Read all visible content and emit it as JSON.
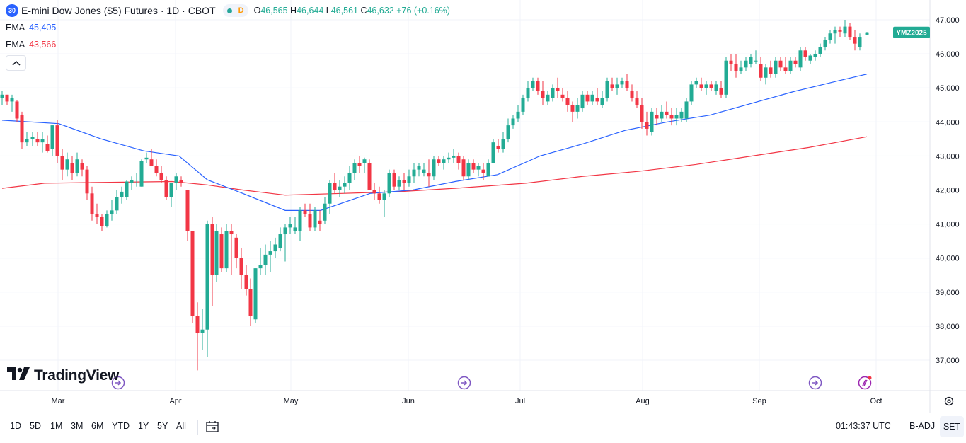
{
  "header": {
    "symbol_badge": "30",
    "title": "E-mini Dow Jones ($5) Futures · 1D · CBOT",
    "status_letter": "D",
    "ohlc": [
      {
        "label": "O",
        "value": "46,565"
      },
      {
        "label": "H",
        "value": "46,644"
      },
      {
        "label": "L",
        "value": "46,561"
      },
      {
        "label": "C",
        "value": "46,632"
      }
    ],
    "change": "+76 (+0.16%)"
  },
  "indicators": [
    {
      "label": "EMA",
      "value": "45,405",
      "color": "#2962ff"
    },
    {
      "label": "EMA",
      "value": "43,566",
      "color": "#f23645"
    }
  ],
  "collapse_icon": "chevron-up-icon",
  "logo_text": "TradingView",
  "price_badge": {
    "label": "YMZ2025",
    "color": "#22ab94"
  },
  "toolbar": {
    "ranges": [
      "1D",
      "5D",
      "1M",
      "3M",
      "6M",
      "YTD",
      "1Y",
      "5Y",
      "All"
    ],
    "calendar_icon": "calendar-icon",
    "clock": "01:43:37 UTC",
    "badj": "B-ADJ",
    "set": "SET"
  },
  "chart_data": {
    "type": "candlestick",
    "x_ticks": [
      "Mar",
      "Apr",
      "May",
      "Jun",
      "Jul",
      "Aug",
      "Sep",
      "Oct"
    ],
    "y_ticks": [
      "37,000",
      "38,000",
      "39,000",
      "40,000",
      "41,000",
      "42,000",
      "43,000",
      "44,000",
      "45,000",
      "46,000",
      "47,000"
    ],
    "ylim": [
      36600,
      47300
    ],
    "grid": true,
    "up_color": "#22ab94",
    "down_color": "#f23645",
    "event_markers": [
      {
        "date": "2025-03-07",
        "icon": "event-arrow-icon"
      },
      {
        "date": "2025-06-10",
        "icon": "event-arrow-icon"
      },
      {
        "date": "2025-09-15",
        "icon": "event-arrow-icon"
      },
      {
        "date": "2025-09-29",
        "icon": "event-dividend-icon"
      }
    ],
    "ema_long": {
      "color": "#f23645",
      "values": [
        [
          0,
          42050
        ],
        [
          60,
          42200
        ],
        [
          240,
          42250
        ],
        [
          290,
          42150
        ],
        [
          340,
          42000
        ],
        [
          400,
          41850
        ],
        [
          480,
          41900
        ],
        [
          560,
          41950
        ],
        [
          640,
          42050
        ],
        [
          740,
          42200
        ],
        [
          820,
          42400
        ],
        [
          900,
          42550
        ],
        [
          980,
          42750
        ],
        [
          1060,
          43000
        ],
        [
          1140,
          43250
        ],
        [
          1222,
          43566
        ]
      ]
    },
    "ema_short": {
      "color": "#2962ff",
      "values": [
        [
          0,
          44050
        ],
        [
          80,
          43950
        ],
        [
          140,
          43500
        ],
        [
          200,
          43150
        ],
        [
          250,
          43000
        ],
        [
          290,
          42300
        ],
        [
          340,
          41900
        ],
        [
          400,
          41400
        ],
        [
          450,
          41400
        ],
        [
          520,
          41900
        ],
        [
          580,
          42000
        ],
        [
          640,
          42250
        ],
        [
          700,
          42450
        ],
        [
          760,
          43000
        ],
        [
          820,
          43350
        ],
        [
          880,
          43750
        ],
        [
          940,
          44000
        ],
        [
          1000,
          44200
        ],
        [
          1060,
          44550
        ],
        [
          1120,
          44900
        ],
        [
          1180,
          45200
        ],
        [
          1222,
          45405
        ]
      ]
    },
    "candles": [
      [
        0,
        44700,
        44900,
        44500,
        44800
      ],
      [
        7,
        44800,
        44800,
        44500,
        44600
      ],
      [
        14,
        44600,
        44800,
        44300,
        44700
      ],
      [
        21,
        44600,
        44650,
        44000,
        44100
      ],
      [
        28,
        44200,
        44300,
        43200,
        43400
      ],
      [
        35,
        43400,
        43700,
        43300,
        43500
      ],
      [
        43,
        43500,
        43700,
        43300,
        43550
      ],
      [
        50,
        43500,
        43700,
        43300,
        43400
      ],
      [
        57,
        43400,
        43700,
        43100,
        43500
      ],
      [
        64,
        43350,
        43600,
        43100,
        43150
      ],
      [
        71,
        43200,
        43900,
        43000,
        43900
      ],
      [
        78,
        43900,
        44050,
        42800,
        43000
      ],
      [
        85,
        43000,
        43200,
        42300,
        42600
      ],
      [
        92,
        42600,
        43100,
        42400,
        42900
      ],
      [
        99,
        42800,
        43000,
        42300,
        42500
      ],
      [
        106,
        42500,
        43100,
        42400,
        42900
      ],
      [
        113,
        42800,
        42900,
        42400,
        42600
      ],
      [
        120,
        42600,
        42700,
        41700,
        41900
      ],
      [
        127,
        41900,
        42100,
        41100,
        41300
      ],
      [
        134,
        41300,
        41600,
        41000,
        41200
      ],
      [
        141,
        41200,
        41300,
        40800,
        40950
      ],
      [
        148,
        40950,
        41400,
        40900,
        41300
      ],
      [
        155,
        41300,
        41700,
        41100,
        41400
      ],
      [
        162,
        41400,
        42000,
        41300,
        41800
      ],
      [
        169,
        41800,
        42100,
        41600,
        41950
      ],
      [
        176,
        41800,
        42300,
        41700,
        42250
      ],
      [
        183,
        42200,
        42400,
        42000,
        42300
      ],
      [
        190,
        42300,
        42500,
        42100,
        42300
      ],
      [
        197,
        42100,
        42900,
        42100,
        42850
      ],
      [
        204,
        42900,
        43100,
        42800,
        42950
      ],
      [
        211,
        42900,
        43200,
        42700,
        42700
      ],
      [
        218,
        42700,
        42900,
        42400,
        42500
      ],
      [
        225,
        42500,
        42700,
        42200,
        42300
      ],
      [
        232,
        42300,
        42400,
        41700,
        41800
      ],
      [
        239,
        41800,
        42200,
        41500,
        42200
      ],
      [
        246,
        42200,
        42500,
        42000,
        42400
      ],
      [
        253,
        42300,
        42400,
        42100,
        42200
      ],
      [
        262,
        42000,
        42000,
        40500,
        40800
      ],
      [
        269,
        40800,
        40800,
        38100,
        38300
      ],
      [
        276,
        38300,
        38700,
        36700,
        37800
      ],
      [
        283,
        37800,
        38500,
        37300,
        37900
      ],
      [
        290,
        37900,
        41100,
        37100,
        41000
      ],
      [
        297,
        41000,
        41200,
        38600,
        39500
      ],
      [
        303,
        39500,
        41000,
        39300,
        40800
      ],
      [
        310,
        40700,
        40900,
        39600,
        39700
      ],
      [
        317,
        39700,
        41000,
        39600,
        40800
      ],
      [
        324,
        40800,
        41000,
        39500,
        40700
      ],
      [
        331,
        40600,
        40700,
        39700,
        40000
      ],
      [
        338,
        40000,
        40300,
        39100,
        39500
      ],
      [
        345,
        39500,
        39800,
        38900,
        39100
      ],
      [
        351,
        39100,
        39400,
        38000,
        38300
      ],
      [
        358,
        38200,
        39700,
        38100,
        39700
      ],
      [
        365,
        39700,
        40300,
        39500,
        39800
      ],
      [
        372,
        39800,
        40400,
        39500,
        40100
      ],
      [
        379,
        40100,
        40500,
        39600,
        40200
      ],
      [
        386,
        40200,
        40600,
        40000,
        40400
      ],
      [
        393,
        40300,
        40900,
        40200,
        40700
      ],
      [
        400,
        40700,
        41000,
        39900,
        40900
      ],
      [
        407,
        40900,
        41200,
        40700,
        41000
      ],
      [
        414,
        40800,
        41200,
        40700,
        40900
      ],
      [
        421,
        40800,
        41500,
        40500,
        41400
      ],
      [
        428,
        41400,
        41600,
        41200,
        41300
      ],
      [
        435,
        41300,
        41600,
        40800,
        40900
      ],
      [
        442,
        40900,
        41500,
        40800,
        41400
      ],
      [
        449,
        41100,
        41400,
        40800,
        41000
      ],
      [
        456,
        41100,
        41800,
        41000,
        41600
      ],
      [
        463,
        41600,
        42300,
        41300,
        42200
      ],
      [
        470,
        42200,
        42500,
        41900,
        42000
      ],
      [
        477,
        42000,
        42300,
        41800,
        42100
      ],
      [
        484,
        42100,
        42400,
        41900,
        42200
      ],
      [
        491,
        42200,
        42700,
        42000,
        42500
      ],
      [
        498,
        42500,
        42900,
        42300,
        42800
      ],
      [
        505,
        42800,
        43000,
        42500,
        42700
      ],
      [
        512,
        42800,
        42950,
        42500,
        42900
      ],
      [
        519,
        42800,
        42900,
        42100,
        42000
      ],
      [
        526,
        42000,
        42200,
        41700,
        41900
      ],
      [
        533,
        41900,
        42100,
        41600,
        41700
      ],
      [
        540,
        41700,
        42000,
        41200,
        41900
      ],
      [
        547,
        41900,
        42600,
        41800,
        42500
      ],
      [
        554,
        42500,
        42600,
        42000,
        42100
      ],
      [
        561,
        42100,
        42400,
        42000,
        42300
      ],
      [
        568,
        42300,
        42500,
        42000,
        42200
      ],
      [
        575,
        42200,
        42600,
        42100,
        42400
      ],
      [
        582,
        42400,
        42800,
        42200,
        42600
      ],
      [
        589,
        42600,
        42800,
        42400,
        42700
      ],
      [
        596,
        42500,
        42800,
        42400,
        42600
      ],
      [
        603,
        42500,
        42900,
        42100,
        42400
      ],
      [
        610,
        42400,
        43000,
        42300,
        42900
      ],
      [
        617,
        42900,
        43000,
        42700,
        42800
      ],
      [
        624,
        42800,
        43000,
        42600,
        42900
      ],
      [
        631,
        42900,
        43100,
        42800,
        42950
      ],
      [
        638,
        42950,
        43200,
        42800,
        43000
      ],
      [
        645,
        43000,
        43100,
        42600,
        42800
      ],
      [
        652,
        42900,
        43000,
        42300,
        42400
      ],
      [
        659,
        42400,
        42900,
        42300,
        42800
      ],
      [
        666,
        42800,
        42900,
        42500,
        42600
      ],
      [
        673,
        42600,
        42800,
        42400,
        42700
      ],
      [
        680,
        42600,
        42800,
        42300,
        42500
      ],
      [
        687,
        42400,
        42900,
        42400,
        42800
      ],
      [
        694,
        42800,
        43500,
        42800,
        43400
      ],
      [
        701,
        43300,
        43500,
        43100,
        43200
      ],
      [
        708,
        43200,
        43700,
        43100,
        43500
      ],
      [
        715,
        43500,
        44100,
        43400,
        43900
      ],
      [
        722,
        43900,
        44200,
        43800,
        44100
      ],
      [
        729,
        44100,
        44500,
        44000,
        44300
      ],
      [
        736,
        44300,
        44800,
        44200,
        44700
      ],
      [
        743,
        44700,
        45200,
        44600,
        45000
      ],
      [
        750,
        45000,
        45300,
        44900,
        45200
      ],
      [
        757,
        45200,
        45300,
        44800,
        44900
      ],
      [
        764,
        44900,
        45200,
        44500,
        44700
      ],
      [
        771,
        44600,
        44900,
        44500,
        44800
      ],
      [
        778,
        44700,
        45100,
        44600,
        45000
      ],
      [
        785,
        45000,
        45300,
        44700,
        44900
      ],
      [
        792,
        44800,
        45000,
        44600,
        44700
      ],
      [
        799,
        44700,
        44900,
        44300,
        44500
      ],
      [
        806,
        44500,
        44600,
        44000,
        44300
      ],
      [
        813,
        44300,
        44700,
        44100,
        44500
      ],
      [
        820,
        44400,
        44900,
        44300,
        44800
      ],
      [
        827,
        44800,
        44900,
        44500,
        44600
      ],
      [
        834,
        44600,
        44900,
        44500,
        44800
      ],
      [
        841,
        44700,
        45000,
        44500,
        44600
      ],
      [
        848,
        44500,
        44900,
        44400,
        44700
      ],
      [
        855,
        44700,
        45300,
        44600,
        45200
      ],
      [
        862,
        45100,
        45300,
        44900,
        45000
      ],
      [
        869,
        45000,
        45300,
        44800,
        45100
      ],
      [
        876,
        45100,
        45300,
        45000,
        45200
      ],
      [
        883,
        45200,
        45400,
        44900,
        45000
      ],
      [
        890,
        44900,
        45100,
        44600,
        44700
      ],
      [
        897,
        44700,
        44900,
        44400,
        44500
      ],
      [
        904,
        44500,
        44700,
        43800,
        44000
      ],
      [
        911,
        44000,
        44300,
        43600,
        43800
      ],
      [
        918,
        43700,
        44400,
        43600,
        44300
      ],
      [
        925,
        44200,
        44400,
        43900,
        44100
      ],
      [
        932,
        44100,
        44500,
        44000,
        44300
      ],
      [
        939,
        44300,
        44600,
        44100,
        44200
      ],
      [
        946,
        44200,
        44400,
        43900,
        44100
      ],
      [
        953,
        44100,
        44400,
        43900,
        44200
      ],
      [
        960,
        44100,
        44400,
        44000,
        44300
      ],
      [
        967,
        44100,
        44700,
        44000,
        44600
      ],
      [
        974,
        44600,
        45200,
        44500,
        45100
      ],
      [
        981,
        45100,
        45300,
        45000,
        45200
      ],
      [
        988,
        45100,
        45300,
        44900,
        45000
      ],
      [
        995,
        45000,
        45200,
        44800,
        45100
      ],
      [
        1002,
        45100,
        45200,
        44900,
        45000
      ],
      [
        1009,
        44900,
        45200,
        44800,
        45100
      ],
      [
        1016,
        45000,
        45200,
        44700,
        44800
      ],
      [
        1023,
        44800,
        45900,
        44700,
        45800
      ],
      [
        1030,
        45800,
        46000,
        45500,
        45700
      ],
      [
        1037,
        45700,
        46000,
        45300,
        45500
      ],
      [
        1044,
        45500,
        45800,
        45400,
        45600
      ],
      [
        1051,
        45600,
        45900,
        45500,
        45800
      ],
      [
        1058,
        45700,
        46000,
        45600,
        45900
      ],
      [
        1065,
        45800,
        46100,
        45700,
        45800
      ],
      [
        1072,
        45700,
        45900,
        45200,
        45300
      ],
      [
        1079,
        45300,
        45700,
        45100,
        45600
      ],
      [
        1086,
        45600,
        45800,
        45300,
        45400
      ],
      [
        1093,
        45400,
        45900,
        45300,
        45800
      ],
      [
        1100,
        45800,
        45900,
        45500,
        45600
      ],
      [
        1107,
        45600,
        45900,
        45400,
        45500
      ],
      [
        1114,
        45500,
        45900,
        45400,
        45800
      ],
      [
        1121,
        45800,
        45900,
        45600,
        45700
      ],
      [
        1128,
        45600,
        46200,
        45500,
        46100
      ],
      [
        1135,
        46100,
        46200,
        45800,
        45900
      ],
      [
        1142,
        45800,
        46000,
        45700,
        45950
      ],
      [
        1149,
        45900,
        46100,
        45800,
        46000
      ],
      [
        1156,
        46000,
        46300,
        45900,
        46200
      ],
      [
        1163,
        46200,
        46500,
        46100,
        46400
      ],
      [
        1170,
        46400,
        46700,
        46300,
        46600
      ],
      [
        1177,
        46600,
        46800,
        46300,
        46700
      ],
      [
        1184,
        46700,
        46800,
        46500,
        46650
      ],
      [
        1191,
        46600,
        47000,
        46500,
        46800
      ],
      [
        1198,
        46800,
        46900,
        46400,
        46500
      ],
      [
        1205,
        46500,
        46700,
        46100,
        46300
      ],
      [
        1212,
        46200,
        46600,
        46100,
        46500
      ],
      [
        1222,
        46565,
        46644,
        46561,
        46632
      ]
    ]
  }
}
